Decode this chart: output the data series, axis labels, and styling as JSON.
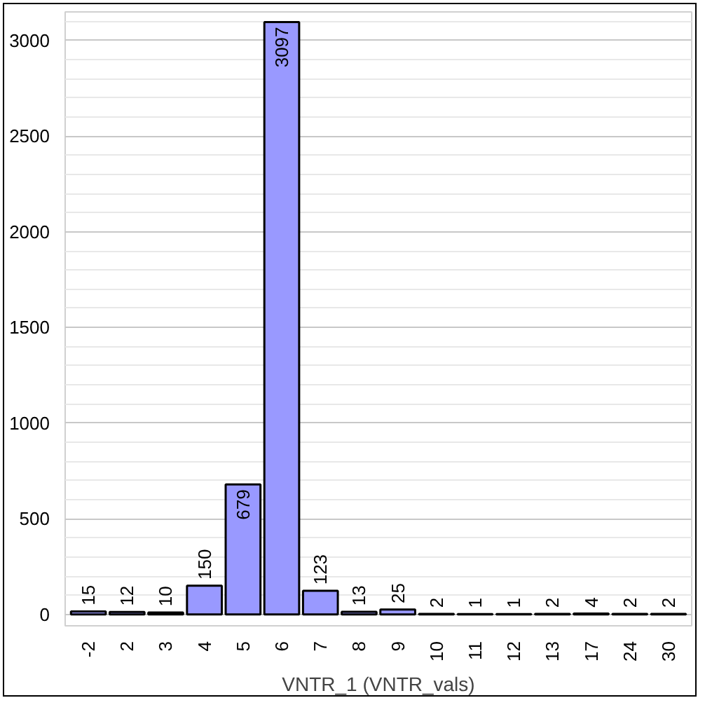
{
  "chart_data": {
    "type": "bar",
    "xlabel": "VNTR_1 (VNTR_vals)",
    "categories": [
      "-2",
      "2",
      "3",
      "4",
      "5",
      "6",
      "7",
      "8",
      "9",
      "10",
      "11",
      "12",
      "13",
      "17",
      "24",
      "30"
    ],
    "values": [
      15,
      12,
      10,
      150,
      679,
      3097,
      123,
      13,
      25,
      2,
      1,
      1,
      2,
      4,
      2,
      2
    ],
    "color": "#9999ff",
    "data_labels": true,
    "ylim": [
      -60,
      3150
    ],
    "yticks": [
      0,
      500,
      1000,
      1500,
      2000,
      2500,
      3000
    ],
    "grid": "y"
  }
}
